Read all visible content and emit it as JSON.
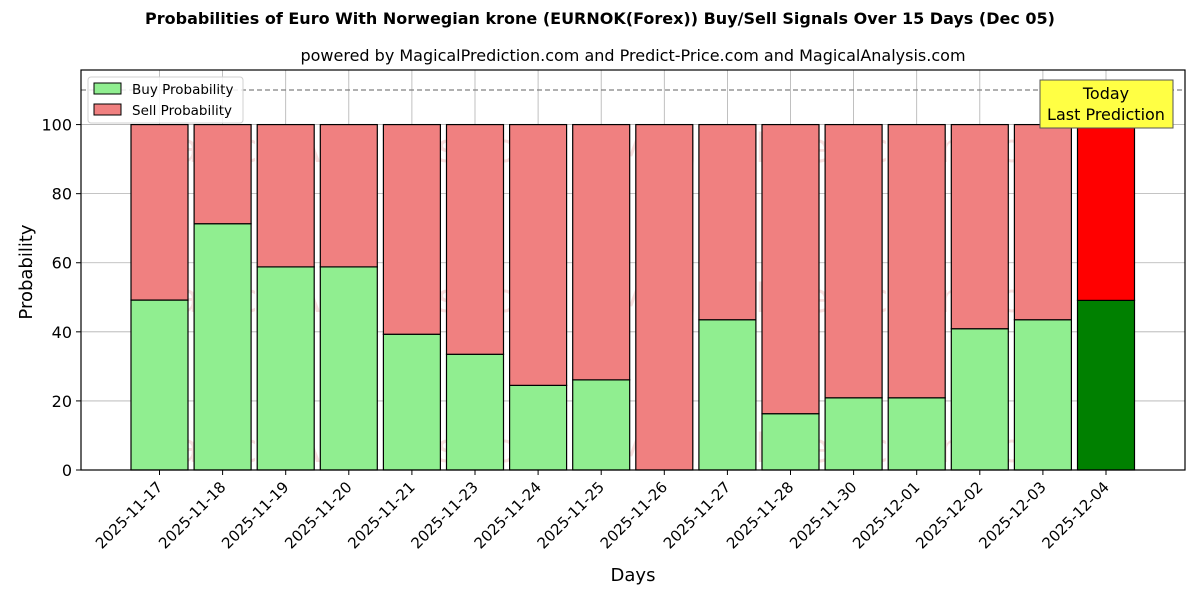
{
  "chart_data": {
    "type": "bar",
    "stacked": true,
    "title": "Probabilities of Euro With Norwegian krone (EURNOK(Forex)) Buy/Sell Signals Over 15 Days (Dec 05)",
    "subtitle": "powered by MagicalPrediction.com and Predict-Price.com and MagicalAnalysis.com",
    "xlabel": "Days",
    "ylabel": "Probability",
    "ylim": [
      0,
      115.8
    ],
    "yticks": [
      0,
      20,
      40,
      60,
      80,
      100
    ],
    "grid": true,
    "reference_line": {
      "y": 110,
      "style": "dashed",
      "color": "#808080"
    },
    "legend": {
      "position": "upper left",
      "entries": [
        "Buy Probability",
        "Sell Probability"
      ]
    },
    "annotation": {
      "text_line1": "Today",
      "text_line2": "Last Prediction",
      "background": "#ffff44"
    },
    "watermarks": [
      "MagicalAnalysis.com",
      "MagicalPrediction.com"
    ],
    "categories": [
      "2025-11-17",
      "2025-11-18",
      "2025-11-19",
      "2025-11-20",
      "2025-11-21",
      "2025-11-23",
      "2025-11-24",
      "2025-11-25",
      "2025-11-26",
      "2025-11-27",
      "2025-11-28",
      "2025-11-30",
      "2025-12-01",
      "2025-12-02",
      "2025-12-03",
      "2025-12-04"
    ],
    "series": [
      {
        "name": "Buy Probability",
        "color": "#90ee90",
        "highlight_color": "#008000",
        "values": [
          49.2,
          71.3,
          58.8,
          58.8,
          39.3,
          33.5,
          24.5,
          26.1,
          0.0,
          43.5,
          16.3,
          20.9,
          20.9,
          40.9,
          43.5,
          49.1
        ]
      },
      {
        "name": "Sell Probability",
        "color": "#f08080",
        "highlight_color": "#ff0000",
        "values": [
          50.8,
          28.7,
          41.2,
          41.2,
          60.7,
          66.5,
          75.5,
          73.9,
          100.0,
          56.5,
          83.7,
          79.1,
          79.1,
          59.1,
          56.5,
          50.9
        ]
      }
    ]
  }
}
